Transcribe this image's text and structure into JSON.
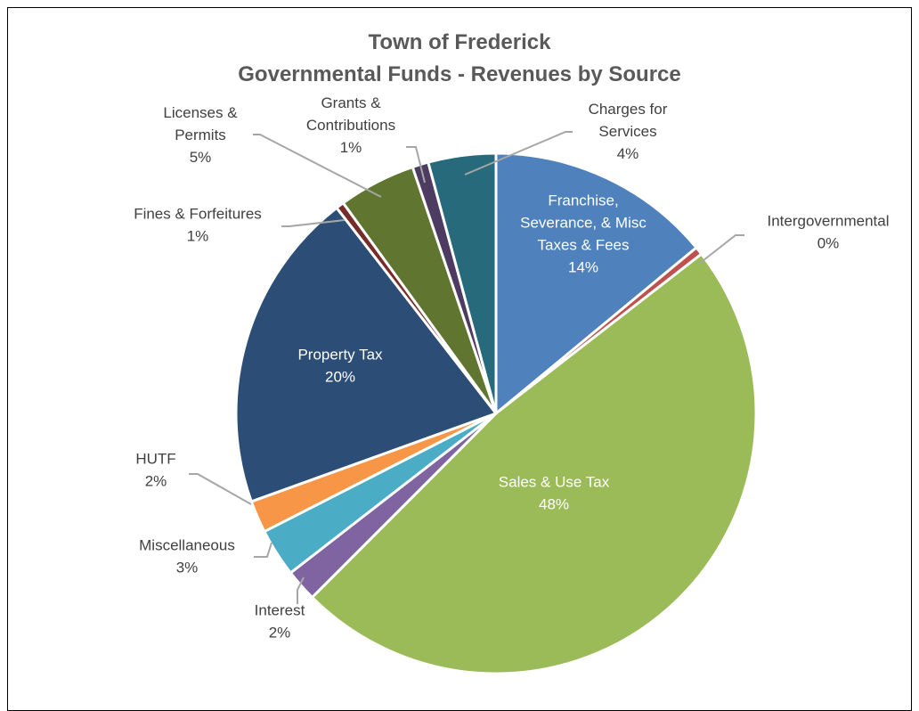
{
  "chart_data": {
    "type": "pie",
    "title": "Town of Frederick",
    "subtitle": "Governmental Funds  - Revenues by Source",
    "slices": [
      {
        "label": "Franchise, Severance, & Misc Taxes & Fees",
        "lines": [
          "Franchise,",
          "Severance, & Misc",
          "Taxes & Fees"
        ],
        "value": 14,
        "pct_label": "14%",
        "color": "#4f81bd",
        "label_placement": "inside"
      },
      {
        "label": "Intergovernmental",
        "lines": [
          "Intergovernmental"
        ],
        "value": 0.5,
        "pct_label": "0%",
        "color": "#c0504d",
        "label_placement": "outside"
      },
      {
        "label": "Sales & Use Tax",
        "lines": [
          "Sales & Use Tax"
        ],
        "value": 48,
        "pct_label": "48%",
        "color": "#9bbb59",
        "label_placement": "inside"
      },
      {
        "label": "Interest",
        "lines": [
          "Interest"
        ],
        "value": 2,
        "pct_label": "2%",
        "color": "#8064a2",
        "label_placement": "outside"
      },
      {
        "label": "Miscellaneous",
        "lines": [
          "Miscellaneous"
        ],
        "value": 3,
        "pct_label": "3%",
        "color": "#4bacc6",
        "label_placement": "outside"
      },
      {
        "label": "HUTF",
        "lines": [
          "HUTF"
        ],
        "value": 2,
        "pct_label": "2%",
        "color": "#f79646",
        "label_placement": "outside"
      },
      {
        "label": "Property Tax",
        "lines": [
          "Property Tax"
        ],
        "value": 20,
        "pct_label": "20%",
        "color": "#2c4d75",
        "label_placement": "inside"
      },
      {
        "label": "Fines & Forfeitures",
        "lines": [
          "Fines & Forfeitures"
        ],
        "value": 0.5,
        "pct_label": "1%",
        "color": "#772c2a",
        "label_placement": "outside"
      },
      {
        "label": "Licenses & Permits",
        "lines": [
          "Licenses &",
          "Permits"
        ],
        "value": 4.8,
        "pct_label": "5%",
        "color": "#5f7530",
        "label_placement": "outside"
      },
      {
        "label": "Grants & Contributions",
        "lines": [
          "Grants &",
          "Contributions"
        ],
        "value": 1,
        "pct_label": "1%",
        "color": "#4d3b62",
        "label_placement": "outside"
      },
      {
        "label": "Charges for Services",
        "lines": [
          "Charges for",
          "Services"
        ],
        "value": 4.2,
        "pct_label": "4%",
        "color": "#276a7c",
        "label_placement": "outside"
      }
    ],
    "legend": "none",
    "start": "top, clockwise"
  }
}
